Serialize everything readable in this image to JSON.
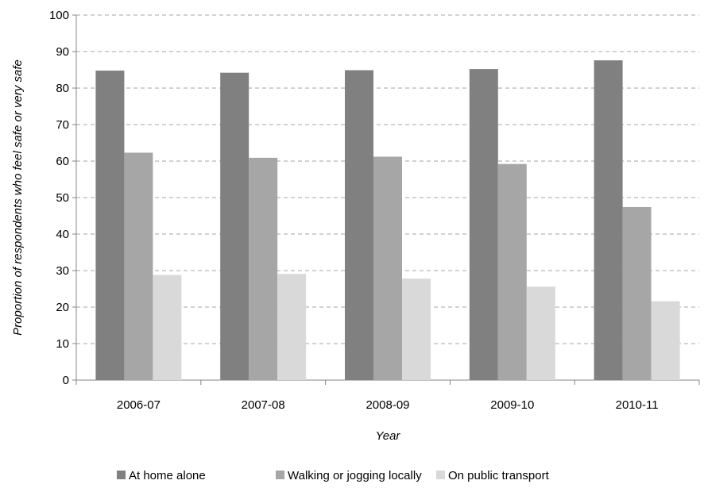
{
  "chart_data": {
    "type": "bar",
    "title": "",
    "xlabel": "Year",
    "ylabel": "Proportion of respondents who feel safe or very safe",
    "categories": [
      "2006-07",
      "2007-08",
      "2008-09",
      "2009-10",
      "2010-11"
    ],
    "ylim": [
      0,
      100
    ],
    "yticks": [
      "0",
      "10",
      "20",
      "30",
      "40",
      "50",
      "60",
      "70",
      "80",
      "90",
      "100"
    ],
    "grid": "horizontal dashed",
    "legend_position": "bottom",
    "series": [
      {
        "name": "At home alone",
        "color": "#808080",
        "values": [
          84.8,
          84.2,
          84.9,
          85.2,
          87.6
        ]
      },
      {
        "name": "Walking or jogging locally",
        "color": "#a6a6a6",
        "values": [
          62.3,
          60.9,
          61.2,
          59.2,
          47.4
        ]
      },
      {
        "name": "On public transport",
        "color": "#d9d9d9",
        "values": [
          28.8,
          29.1,
          27.8,
          25.6,
          21.6
        ]
      }
    ]
  }
}
